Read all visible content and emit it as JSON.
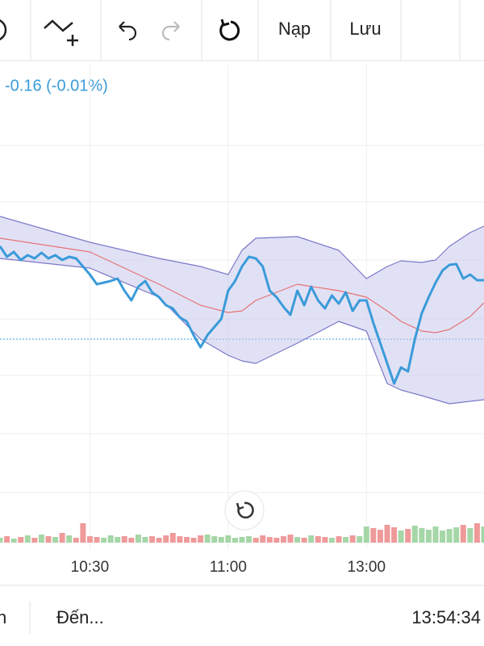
{
  "toolbar": {
    "buttons": [
      "Nạp",
      "Lưu"
    ]
  },
  "chart_data": {
    "type": "line",
    "annotation": "-0.16 (-0.01%)",
    "x": [
      -3,
      -2,
      -1,
      0,
      1,
      2,
      3,
      4,
      5,
      6,
      7,
      8,
      9,
      10,
      11,
      12,
      13,
      14,
      15,
      16,
      17,
      18,
      19,
      20,
      21,
      22,
      23,
      24,
      25,
      26,
      27,
      28,
      29,
      30,
      31,
      32,
      33,
      34,
      35,
      36,
      37,
      38,
      39,
      40,
      41,
      42,
      43,
      44,
      45,
      46,
      47,
      48,
      49,
      50,
      51,
      52,
      53,
      54,
      55,
      56,
      57,
      58,
      59,
      60,
      61,
      62,
      63,
      64,
      65,
      66,
      67
    ],
    "xlim": [
      -3,
      67
    ],
    "xticks": [
      {
        "value": 10,
        "label": "10:30"
      },
      {
        "value": 30,
        "label": "11:00"
      },
      {
        "value": 50,
        "label": "13:00"
      }
    ],
    "ylim": [
      0,
      600
    ],
    "yticks": [
      70,
      143,
      215,
      285,
      358,
      430,
      500
    ],
    "grid": true,
    "reference_line": 260,
    "series": [
      {
        "color": "#3a9bd9",
        "values": [
          375,
          362,
          368,
          358,
          364,
          360,
          367,
          360,
          364,
          358,
          362,
          360,
          350,
          340,
          328,
          330,
          332,
          335,
          320,
          308,
          325,
          332,
          318,
          312,
          302,
          298,
          287,
          282,
          265,
          250,
          265,
          275,
          285,
          320,
          332,
          350,
          362,
          360,
          350,
          320,
          312,
          300,
          290,
          320,
          302,
          325,
          308,
          298,
          314,
          304,
          318,
          295,
          308,
          308,
          280,
          255,
          230,
          205,
          225,
          220,
          260,
          292,
          312,
          330,
          345,
          352,
          353,
          335,
          340,
          333,
          333
        ]
      },
      {
        "color": "#7b78c8",
        "x": [
          -3,
          10,
          20,
          26,
          30,
          32,
          34,
          40,
          46,
          50,
          53,
          55,
          58,
          60,
          62,
          65,
          67
        ],
        "values": [
          412,
          380,
          360,
          350,
          340,
          370,
          385,
          387,
          370,
          335,
          350,
          357,
          355,
          358,
          375,
          392,
          400
        ]
      },
      {
        "color": "#7b78c8",
        "x": [
          -3,
          10,
          20,
          26,
          30,
          32,
          34,
          40,
          46,
          50,
          53,
          55,
          58,
          60,
          62,
          65,
          67
        ],
        "values": [
          360,
          348,
          312,
          260,
          240,
          233,
          230,
          255,
          282,
          270,
          205,
          197,
          190,
          185,
          180,
          183,
          185
        ]
      },
      {
        "color": "#e57373",
        "x": [
          -3,
          10,
          20,
          26,
          30,
          32,
          34,
          40,
          46,
          50,
          53,
          55,
          58,
          60,
          62,
          65,
          67
        ],
        "values": [
          385,
          368,
          328,
          302,
          293,
          295,
          308,
          328,
          320,
          312,
          295,
          282,
          270,
          268,
          272,
          288,
          305
        ]
      }
    ],
    "band_fill": "#c9c8ec",
    "volume": {
      "values": [
        6,
        8,
        5,
        7,
        9,
        6,
        10,
        8,
        7,
        12,
        9,
        6,
        24,
        8,
        7,
        6,
        9,
        7,
        8,
        6,
        10,
        7,
        8,
        6,
        9,
        12,
        8,
        7,
        6,
        9,
        10,
        8,
        7,
        9,
        6,
        7,
        8,
        6,
        9,
        7,
        6,
        8,
        10,
        7,
        6,
        9,
        8,
        7,
        6,
        8,
        7,
        9,
        8,
        20,
        18,
        16,
        22,
        19,
        15,
        17,
        21,
        18,
        16,
        20,
        15,
        17,
        19,
        22,
        18,
        24,
        20
      ],
      "ylim": [
        0,
        60
      ],
      "up_color": "#a5d6a7",
      "down_color": "#ef9a9a"
    }
  },
  "footer": {
    "items": [
      "n",
      "Đến...",
      "13:54:34"
    ]
  }
}
